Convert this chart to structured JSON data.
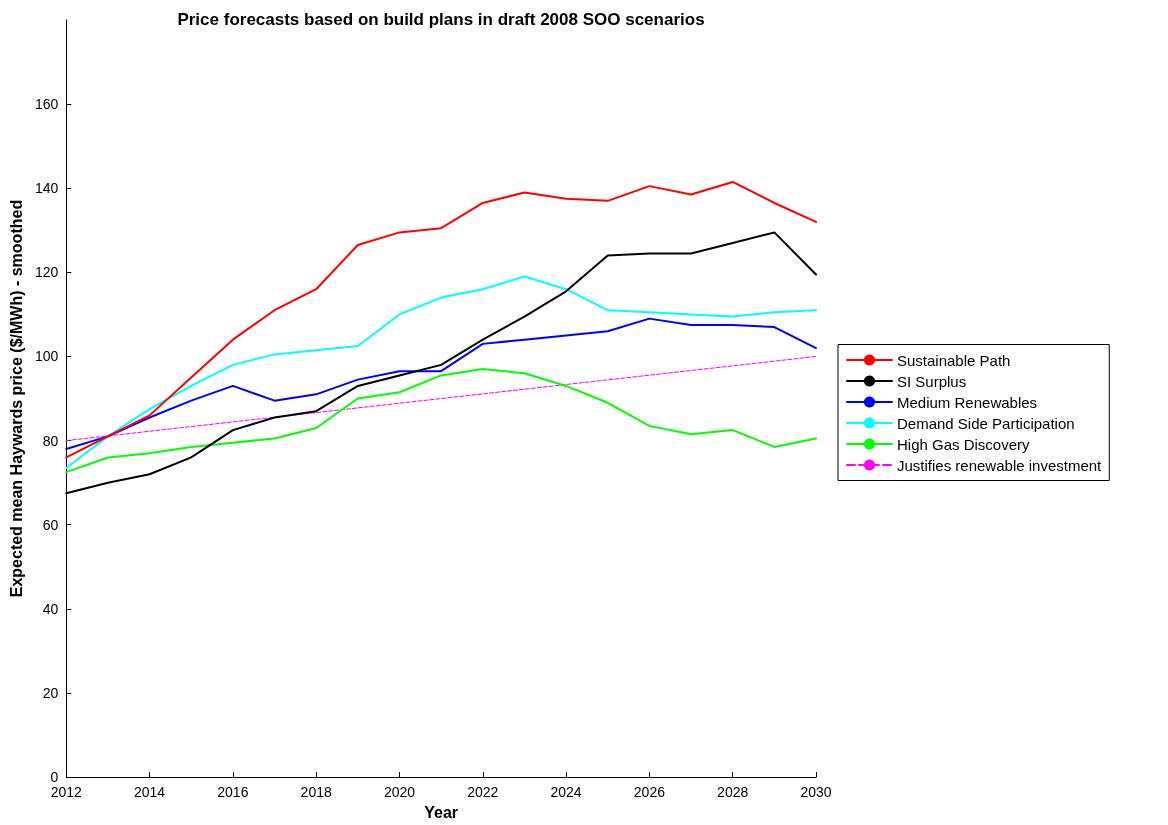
{
  "chart_data": {
    "type": "line",
    "title": "Price forecasts based on build plans in draft 2008 SOO scenarios",
    "xlabel": "Year",
    "ylabel": "Expected mean Haywards price ($/MWh) - smoothed",
    "x": [
      2012,
      2013,
      2014,
      2015,
      2016,
      2017,
      2018,
      2019,
      2020,
      2021,
      2022,
      2023,
      2024,
      2025,
      2026,
      2027,
      2028,
      2029,
      2030
    ],
    "series": [
      {
        "name": "Sustainable Path",
        "color": "#ff0000",
        "values": [
          76,
          81,
          86,
          95,
          104,
          111,
          116,
          126.5,
          129.5,
          130.5,
          136.5,
          139,
          137.5,
          137,
          140.5,
          138.5,
          141.5,
          136.5,
          132
        ]
      },
      {
        "name": "SI Surplus",
        "color": "#000000",
        "values": [
          67.5,
          70,
          72,
          76,
          82.5,
          85.5,
          87,
          93,
          95.5,
          98,
          104,
          109.5,
          115.5,
          124,
          124.5,
          124.5,
          127,
          129.5,
          119.5
        ]
      },
      {
        "name": "Medium Renewables",
        "color": "#0000ff",
        "values": [
          78,
          81,
          85.5,
          89.5,
          93,
          89.5,
          91,
          94.5,
          96.5,
          96.5,
          103,
          104,
          105,
          106,
          109,
          107.5,
          107.5,
          107,
          102
        ]
      },
      {
        "name": "Demand Side Participation",
        "color": "#00ffff",
        "values": [
          73.5,
          81,
          87.5,
          93,
          98,
          100.5,
          101.5,
          102.5,
          110,
          114,
          116,
          119,
          116,
          111,
          110.5,
          110,
          109.5,
          110.5,
          111
        ]
      },
      {
        "name": "High Gas Discovery",
        "color": "#00ff00",
        "values": [
          72.5,
          76,
          77,
          78.5,
          79.5,
          80.5,
          83,
          90,
          91.5,
          95.5,
          97,
          96,
          93,
          89,
          83.5,
          81.5,
          82.5,
          78.5,
          80.5
        ]
      },
      {
        "name": "Justifies renewable investment",
        "color": "#ff00ff",
        "x": [
          2012,
          2030
        ],
        "values": [
          80,
          100
        ],
        "line_style": "dashed"
      }
    ],
    "xlim": [
      2012,
      2030
    ],
    "xticks": [
      2012,
      2014,
      2016,
      2018,
      2020,
      2022,
      2024,
      2026,
      2028,
      2030
    ],
    "ylim": [
      0,
      180
    ],
    "yticks": [
      0,
      20,
      40,
      60,
      80,
      100,
      120,
      140,
      160
    ],
    "legend": "right",
    "marker": "none",
    "line_style": "solid",
    "grid": false
  }
}
